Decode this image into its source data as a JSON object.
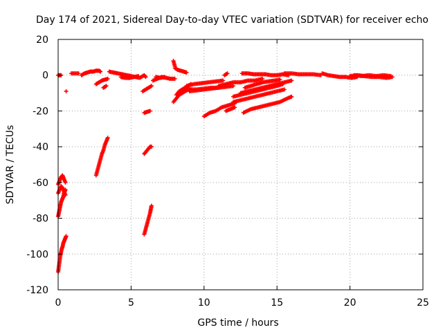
{
  "chart_data": {
    "type": "scatter",
    "title": "Day 174 of 2021, Sidereal Day-to-day VTEC variation (SDTVAR) for receiver echo",
    "xlabel": "GPS time / hours",
    "ylabel": "SDTVAR / TECUs",
    "xlim": [
      0,
      25
    ],
    "ylim": [
      -120,
      20
    ],
    "xticks": [
      "0",
      "5",
      "10",
      "15",
      "20",
      "25"
    ],
    "yticks": [
      "20",
      "0",
      "-20",
      "-40",
      "-60",
      "-80",
      "-100",
      "-120"
    ],
    "grid": true,
    "marker": "+",
    "colors": {
      "series": "#ff0000",
      "grid": "#a0a0a0",
      "axis": "#000000"
    },
    "series": [
      {
        "name": "SDTVAR",
        "segments": [
          {
            "x": [
              0.0,
              0.05,
              0.1,
              0.15,
              0.2,
              0.25,
              0.3,
              0.35,
              0.4,
              0.45,
              0.5,
              0.55
            ],
            "y": [
              -110,
              -107,
              -104,
              -101,
              -99,
              -97,
              -96,
              -94,
              -93,
              -92,
              -91,
              -90
            ]
          },
          {
            "x": [
              0.0,
              0.05,
              0.1,
              0.15,
              0.2,
              0.25,
              0.3,
              0.35,
              0.4,
              0.45,
              0.5
            ],
            "y": [
              -79,
              -77,
              -75,
              -73,
              -71,
              -70,
              -69,
              -68,
              -66,
              -65,
              -64
            ]
          },
          {
            "x": [
              0.0,
              0.1,
              0.2,
              0.3,
              0.4,
              0.5
            ],
            "y": [
              -61,
              -59,
              -57,
              -56,
              -58,
              -60
            ]
          },
          {
            "x": [
              0.0,
              0.1,
              0.2,
              0.3,
              0.4,
              0.5
            ],
            "y": [
              -66,
              -64,
              -62,
              -63,
              -65,
              -67
            ]
          },
          {
            "x": [
              0.0,
              0.1,
              0.2
            ],
            "y": [
              0,
              0,
              0
            ]
          },
          {
            "x": [
              0.55
            ],
            "y": [
              -9
            ]
          },
          {
            "x": [
              0.9,
              1.4
            ],
            "y": [
              1,
              1
            ]
          },
          {
            "x": [
              1.6,
              1.8,
              2.0,
              2.2,
              2.4,
              2.6,
              2.8,
              2.9
            ],
            "y": [
              0,
              1,
              1.5,
              2,
              2,
              2.5,
              2.5,
              2
            ]
          },
          {
            "x": [
              2.6,
              2.7,
              2.8,
              2.9,
              3.0,
              3.1,
              3.2,
              3.3,
              3.4
            ],
            "y": [
              -56,
              -53,
              -50,
              -47,
              -44,
              -42,
              -39,
              -37,
              -35
            ]
          },
          {
            "x": [
              2.6,
              2.8,
              3.0,
              3.2,
              3.4
            ],
            "y": [
              -5,
              -4,
              -3,
              -2.5,
              -2
            ]
          },
          {
            "x": [
              3.1,
              3.3
            ],
            "y": [
              -7,
              -6
            ]
          },
          {
            "x": [
              3.5,
              3.8,
              4.1,
              4.4,
              4.7,
              5.0,
              5.3,
              5.6,
              5.9,
              6.0
            ],
            "y": [
              2,
              1.5,
              1,
              0.5,
              0,
              -0.5,
              -1,
              -1.5,
              0,
              -1
            ]
          },
          {
            "x": [
              4.3,
              4.6,
              4.9,
              5.2,
              5.5
            ],
            "y": [
              -1,
              -1.5,
              -1.5,
              -1,
              -0.5
            ]
          },
          {
            "x": [
              5.9,
              6.0,
              6.1,
              6.2,
              6.3,
              6.4
            ],
            "y": [
              -89,
              -86,
              -83,
              -80,
              -77,
              -73
            ]
          },
          {
            "x": [
              5.9,
              6.0,
              6.1,
              6.2,
              6.3,
              6.4
            ],
            "y": [
              -44,
              -43,
              -42,
              -41,
              -40,
              -40
            ]
          },
          {
            "x": [
              5.9,
              6.1,
              6.3
            ],
            "y": [
              -21,
              -20.5,
              -20
            ]
          },
          {
            "x": [
              5.8,
              6.0,
              6.2,
              6.4
            ],
            "y": [
              -9,
              -8,
              -7,
              -6
            ]
          },
          {
            "x": [
              6.5,
              6.8,
              7.1,
              7.4,
              7.7,
              8.0
            ],
            "y": [
              -3,
              -2,
              -1,
              -1.5,
              -2,
              -2
            ]
          },
          {
            "x": [
              6.7,
              7.0,
              7.3
            ],
            "y": [
              -1,
              -1.5,
              -1
            ]
          },
          {
            "x": [
              7.9,
              8.0
            ],
            "y": [
              8,
              5
            ]
          },
          {
            "x": [
              8.0,
              8.2,
              8.4,
              8.6,
              8.8
            ],
            "y": [
              4,
              3,
              2.5,
              2,
              1.5
            ]
          },
          {
            "x": [
              7.9,
              8.1,
              8.3,
              8.5,
              8.7,
              8.9,
              9.1
            ],
            "y": [
              -15,
              -13,
              -11,
              -10,
              -9,
              -8,
              -8
            ]
          },
          {
            "x": [
              8.1,
              8.3,
              8.5,
              8.7,
              8.9,
              9.1
            ],
            "y": [
              -11,
              -9,
              -8,
              -7,
              -6,
              -5
            ]
          },
          {
            "x": [
              8.5,
              9.0,
              9.5,
              10.0,
              10.5,
              11.0,
              11.5,
              12.0
            ],
            "y": [
              -9,
              -8,
              -8,
              -7.5,
              -7,
              -7,
              -6.5,
              -6
            ]
          },
          {
            "x": [
              8.8,
              9.3,
              9.8,
              10.3,
              10.8,
              11.3
            ],
            "y": [
              -6,
              -5,
              -4.5,
              -4,
              -3.5,
              -3
            ]
          },
          {
            "x": [
              9.0,
              9.5,
              10.0,
              10.5,
              11.0
            ],
            "y": [
              -9,
              -8.5,
              -8,
              -7.5,
              -7
            ]
          },
          {
            "x": [
              10.0,
              10.4,
              10.8,
              11.2,
              11.6,
              12.0,
              12.2
            ],
            "y": [
              -23,
              -21,
              -20,
              -18,
              -17,
              -16,
              -15
            ]
          },
          {
            "x": [
              11.0,
              11.5,
              12.0,
              12.5,
              13.0,
              13.5,
              14.0
            ],
            "y": [
              -6,
              -5,
              -4,
              -4,
              -3,
              -3,
              -2
            ]
          },
          {
            "x": [
              11.4,
              11.6
            ],
            "y": [
              0,
              1
            ]
          },
          {
            "x": [
              11.5,
              11.8,
              12.1
            ],
            "y": [
              -20,
              -19,
              -18
            ]
          },
          {
            "x": [
              12.0,
              12.5,
              13.0,
              13.5,
              14.0,
              14.5,
              15.0,
              15.4
            ],
            "y": [
              -12,
              -11,
              -10,
              -9,
              -8,
              -7,
              -6,
              -5
            ]
          },
          {
            "x": [
              12.0,
              12.5,
              13.0,
              13.5,
              14.0,
              14.5,
              15.0,
              15.5
            ],
            "y": [
              -15,
              -14,
              -13,
              -12,
              -11,
              -10,
              -9,
              -8
            ]
          },
          {
            "x": [
              12.5,
              13.0,
              13.5,
              14.0,
              14.5,
              15.0,
              15.5,
              16.0
            ],
            "y": [
              -10,
              -9,
              -8,
              -7,
              -6,
              -5,
              -4,
              -3
            ]
          },
          {
            "x": [
              12.7,
              13.2,
              13.7,
              14.2,
              14.7,
              15.2,
              15.7,
              16.0
            ],
            "y": [
              -21,
              -19,
              -18,
              -17,
              -16,
              -15,
              -13,
              -12
            ]
          },
          {
            "x": [
              12.8,
              13.2,
              13.6,
              14.0,
              14.4,
              14.8,
              15.2
            ],
            "y": [
              -7,
              -6,
              -5,
              -4,
              -3.5,
              -3,
              -2.5
            ]
          },
          {
            "x": [
              12.6,
              13.0,
              13.4,
              13.8,
              14.2,
              14.6,
              15.0,
              15.4,
              15.8
            ],
            "y": [
              1,
              1,
              0.5,
              0.5,
              0.5,
              0,
              0,
              0.5,
              0
            ]
          },
          {
            "x": [
              15.5,
              16.0,
              16.5,
              17.0,
              17.5,
              18.0
            ],
            "y": [
              1,
              1,
              0.5,
              0.5,
              0.5,
              0
            ]
          },
          {
            "x": [
              18.1,
              18.5,
              18.9,
              19.3,
              19.7,
              20.1,
              20.5
            ],
            "y": [
              1,
              0,
              -0.5,
              -1,
              -1,
              -1.5,
              -1
            ]
          },
          {
            "x": [
              20.0,
              20.5,
              21.0,
              21.5,
              22.0,
              22.5,
              22.9
            ],
            "y": [
              -0.5,
              0,
              -0.5,
              -1,
              -1,
              -1.5,
              -1
            ]
          },
          {
            "x": [
              20.3,
              20.8,
              21.3,
              21.8,
              22.3,
              22.8
            ],
            "y": [
              0,
              -0.5,
              0,
              -0.5,
              0,
              -0.5
            ]
          }
        ]
      }
    ]
  }
}
